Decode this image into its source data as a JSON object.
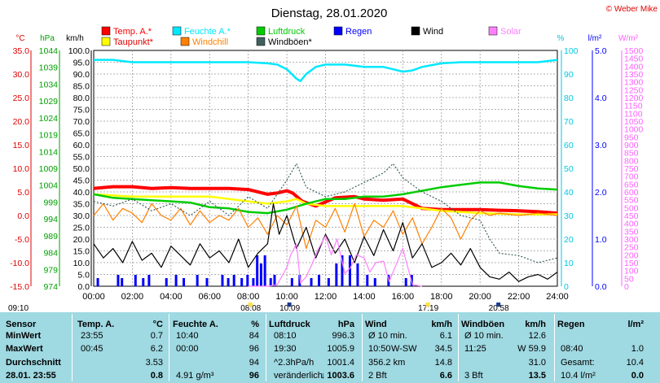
{
  "title": "Dienstag, 28.01.2020",
  "copyright": "© Weber Mike",
  "legend": [
    {
      "name": "Temp. A.*",
      "color": "#ff0000"
    },
    {
      "name": "Feuchte A.*",
      "color": "#00e8ff"
    },
    {
      "name": "Luftdruck",
      "color": "#00cc00"
    },
    {
      "name": "Regen",
      "color": "#0000ff"
    },
    {
      "name": "Wind",
      "color": "#000000"
    },
    {
      "name": "Solar",
      "color": "#ff80ff"
    },
    {
      "name": "Taupunkt*",
      "color": "#ffff00"
    },
    {
      "name": "Windchill",
      "color": "#ff8000"
    },
    {
      "name": "Windböen*",
      "color": "#406060"
    }
  ],
  "axis_units": {
    "temp": "°C",
    "hpa": "hPa",
    "kmh": "km/h",
    "pct": "%",
    "rain": "l/m²",
    "solar": "W/m²"
  },
  "chart_data": {
    "type": "line",
    "x_ticks": [
      "00:00",
      "02:00",
      "04:00",
      "06:00",
      "08:00",
      "10:00",
      "12:00",
      "14:00",
      "16:00",
      "18:00",
      "20:00",
      "22:00",
      "24:00"
    ],
    "axes": {
      "temp": {
        "ticks": [
          "35.0",
          "30.0",
          "25.0",
          "20.0",
          "15.0",
          "10.0",
          "5.0",
          "0.0",
          "-5.0",
          "-10.0",
          "-15.0"
        ],
        "range": [
          -15,
          35
        ]
      },
      "hpa": {
        "ticks": [
          "1044",
          "1039",
          "1034",
          "1029",
          "1024",
          "1019",
          "1014",
          "1009",
          "1004",
          "999",
          "994",
          "989",
          "984",
          "979",
          "974"
        ],
        "range": [
          974,
          1044
        ]
      },
      "kmh": {
        "ticks": [
          "100.0",
          "95.0",
          "90.0",
          "85.0",
          "80.0",
          "75.0",
          "70.0",
          "65.0",
          "60.0",
          "55.0",
          "50.0",
          "45.0",
          "40.0",
          "35.0",
          "30.0",
          "25.0",
          "20.0",
          "15.0",
          "10.0",
          "5.0",
          "0.0"
        ],
        "range": [
          0,
          100
        ]
      },
      "pct": {
        "ticks": [
          "100",
          "90",
          "80",
          "70",
          "60",
          "50",
          "40",
          "30",
          "20",
          "10",
          "0"
        ],
        "range": [
          0,
          100
        ]
      },
      "rain": {
        "ticks": [
          "5.0",
          "4.0",
          "3.0",
          "2.0",
          "1.0",
          "0.0"
        ],
        "range": [
          0,
          5
        ]
      },
      "solar": {
        "ticks": [
          "1500",
          "1450",
          "1400",
          "1350",
          "1300",
          "1250",
          "1200",
          "1150",
          "1100",
          "1050",
          "1000",
          "950",
          "900",
          "850",
          "800",
          "750",
          "700",
          "650",
          "600",
          "550",
          "500",
          "450",
          "400",
          "350",
          "300",
          "250",
          "200",
          "150",
          "100",
          "50",
          "0"
        ],
        "range": [
          0,
          1500
        ]
      }
    },
    "series": [
      {
        "name": "Temp. A.*",
        "color": "#ff0000",
        "axis": "kmh",
        "x": [
          0,
          1,
          2,
          3,
          4,
          5,
          6,
          7,
          8,
          9,
          9.5,
          10,
          10.3,
          10.8,
          11.5,
          12.5,
          13.5,
          14,
          15,
          16,
          16.5,
          17,
          18,
          19,
          20,
          21,
          22,
          23,
          24
        ],
        "y": [
          41.5,
          42.2,
          42.2,
          41.5,
          41.8,
          41.5,
          41.5,
          41.5,
          41,
          39,
          39.5,
          40.5,
          39.5,
          36,
          34,
          37.5,
          38,
          37,
          36.5,
          37,
          35,
          33,
          32.5,
          32.5,
          32.5,
          32.2,
          32,
          31.6,
          31
        ]
      },
      {
        "name": "Taupunkt*",
        "color": "#ffff00",
        "axis": "kmh",
        "x": [
          0,
          2,
          4,
          6,
          8,
          9,
          10,
          10.5,
          11,
          12,
          13,
          14,
          15,
          16,
          17,
          18,
          20,
          22,
          24
        ],
        "y": [
          39,
          38,
          38,
          38,
          36,
          35,
          36,
          37,
          35,
          34,
          34,
          34,
          34,
          34,
          33,
          32,
          31,
          30.5,
          30.5
        ]
      },
      {
        "name": "Feuchte A.*",
        "color": "#00e8ff",
        "axis": "pct",
        "x": [
          0,
          1,
          1.5,
          2,
          3,
          4,
          5,
          6,
          7,
          8,
          9,
          9.5,
          10,
          10.5,
          10.7,
          11,
          11.5,
          12,
          13,
          14,
          15,
          15.5,
          16,
          16.5,
          17,
          18,
          19,
          20,
          21,
          22,
          23,
          24
        ],
        "y": [
          96,
          96,
          95.5,
          95,
          95,
          95,
          95,
          95,
          95,
          95,
          94.5,
          94,
          92,
          88,
          87,
          90,
          93,
          94,
          94,
          93,
          93,
          92,
          91,
          91.5,
          93,
          94.5,
          95,
          95,
          95,
          95,
          95,
          96
        ]
      },
      {
        "name": "Luftdruck",
        "color": "#00cc00",
        "axis": "kmh",
        "x": [
          0,
          1,
          2,
          3,
          4,
          5,
          6,
          7,
          8,
          9,
          10,
          11,
          12,
          13,
          14,
          15,
          16,
          17,
          18,
          19,
          20,
          21,
          22,
          23,
          24
        ],
        "y": [
          39,
          37.5,
          37,
          36.5,
          36,
          35.5,
          33.5,
          33,
          31.5,
          31,
          32.5,
          35,
          37,
          37,
          38,
          38,
          39,
          40.5,
          42,
          43,
          44,
          44,
          42.5,
          41.5,
          41
        ]
      },
      {
        "name": "Windchill",
        "color": "#ff8000",
        "axis": "kmh",
        "x": [
          0,
          0.5,
          1,
          1.5,
          2,
          2.5,
          3,
          3.5,
          4,
          4.5,
          5,
          5.5,
          6,
          6.5,
          7,
          7.5,
          8,
          8.5,
          9,
          9.5,
          10,
          10.5,
          11,
          11.5,
          12,
          12.5,
          13,
          13.5,
          14,
          14.5,
          15,
          15.5,
          16,
          16.5,
          17,
          17.5,
          18,
          18.5,
          19,
          19.5,
          20,
          20.5,
          21,
          22,
          23,
          24
        ],
        "y": [
          30,
          35,
          28,
          33,
          31,
          27,
          35,
          30,
          28,
          33,
          26,
          32,
          27,
          30,
          28,
          33,
          25,
          29,
          22,
          30,
          26,
          34,
          16,
          28,
          25,
          33,
          23,
          35,
          21,
          28,
          25,
          32,
          22,
          29,
          18,
          25,
          33,
          29,
          20,
          28,
          32,
          30,
          31,
          30,
          31,
          30
        ]
      },
      {
        "name": "Wind",
        "color": "#000000",
        "axis": "kmh",
        "x": [
          0,
          0.5,
          1,
          1.5,
          2,
          2.5,
          3,
          3.5,
          4,
          4.5,
          5,
          5.5,
          6,
          6.5,
          7,
          7.5,
          8,
          8.5,
          9,
          9.3,
          9.6,
          10,
          10.5,
          11,
          11.5,
          12,
          12.5,
          13,
          13.5,
          14,
          14.5,
          15,
          15.5,
          16,
          16.5,
          17,
          17.5,
          18,
          18.5,
          19,
          19.5,
          20,
          20.5,
          21,
          21.5,
          22,
          22.5,
          23,
          23.5,
          24
        ],
        "y": [
          18,
          12,
          16,
          10,
          19,
          11,
          14,
          8,
          17,
          13,
          9,
          18,
          12,
          15,
          10,
          20,
          8,
          14,
          18,
          35,
          22,
          30,
          16,
          25,
          12,
          22,
          14,
          20,
          10,
          21,
          13,
          24,
          15,
          27,
          12,
          18,
          8,
          10,
          14,
          9,
          16,
          8,
          4,
          3,
          6,
          2,
          4,
          5,
          3,
          6
        ]
      },
      {
        "name": "Windböen*",
        "color": "#406060",
        "dashed": true,
        "axis": "kmh",
        "x": [
          0,
          1,
          2,
          3,
          4,
          5,
          6,
          7,
          8,
          9,
          10,
          10.5,
          11,
          12,
          13,
          14,
          15,
          15.5,
          16,
          17,
          18,
          19,
          20,
          20.5,
          21,
          22,
          23,
          24
        ],
        "y": [
          36,
          34,
          37,
          32,
          35,
          30,
          36,
          30,
          38,
          33,
          45,
          52,
          42,
          38,
          40,
          44,
          48,
          52,
          46,
          40,
          36,
          30,
          28,
          20,
          14,
          13,
          10,
          12
        ]
      },
      {
        "name": "Solar",
        "color": "#ff80ff",
        "axis": "solar",
        "x": [
          8,
          9,
          9.5,
          10,
          10.2,
          10.5,
          10.7,
          11,
          11.3,
          11.6,
          12,
          12.3,
          12.6,
          13,
          13.3,
          13.6,
          14,
          14.3,
          14.6,
          15,
          15.3,
          15.6,
          16,
          16.5,
          17
        ],
        "y": [
          0,
          0,
          10,
          120,
          200,
          270,
          20,
          60,
          140,
          230,
          320,
          200,
          300,
          80,
          120,
          200,
          180,
          90,
          150,
          160,
          30,
          120,
          240,
          10,
          0
        ]
      }
    ],
    "time_markers": [
      {
        "label": "09:10",
        "x": 0.2
      },
      {
        "label": "08:08",
        "x": 8.13
      },
      {
        "label": "10:09",
        "x": 10.15
      },
      {
        "label": "17:19",
        "x": 17.32
      },
      {
        "label": "20:58",
        "x": 20.97
      }
    ]
  },
  "stats": {
    "headers": {
      "sensor": "Sensor",
      "temp": "Temp. A.",
      "temp_unit": "°C",
      "feuchte": "Feuchte A.",
      "feuchte_unit": "%",
      "luft": "Luftdruck",
      "luft_unit": "hPa",
      "wind": "Wind",
      "wind_unit": "km/h",
      "boen": "Windböen",
      "boen_unit": "km/h",
      "regen": "Regen",
      "regen_unit": "l/m²"
    },
    "row_labels": [
      "MinWert",
      "MaxWert",
      "Durchschnitt",
      "28.01. 23:55"
    ],
    "temp": [
      [
        "23:55",
        "0.7"
      ],
      [
        "00:45",
        "6.2"
      ],
      [
        "",
        "3.53"
      ],
      [
        "",
        "0.8"
      ]
    ],
    "feuchte": [
      [
        "10:40",
        "84"
      ],
      [
        "00:00",
        "96"
      ],
      [
        "",
        "94"
      ],
      [
        "4.91 g/m³",
        "96"
      ]
    ],
    "luft": [
      [
        "08:10",
        "996.3"
      ],
      [
        "19:30",
        "1005.9"
      ],
      [
        "^2.3hPa/h",
        "1001.4"
      ],
      [
        "veränderlich",
        "↓ 1003.6"
      ]
    ],
    "wind": [
      [
        "Ø 10 min.",
        "",
        "6.1"
      ],
      [
        "10:50",
        "W-SW",
        "34.5"
      ],
      [
        "356.2 km",
        "",
        "14.8"
      ],
      [
        "2 Bft",
        "",
        "6.6"
      ]
    ],
    "boen": [
      [
        "Ø 10 min.",
        "12.6"
      ],
      [
        "11:25",
        "W 59.9"
      ],
      [
        "",
        "31.0"
      ],
      [
        "3 Bft",
        "13.5"
      ]
    ],
    "regen": [
      [
        "",
        ""
      ],
      [
        "08:40",
        "1.0"
      ],
      [
        "Gesamt:",
        "10.4"
      ],
      [
        "10.4 l/m²",
        "0.0"
      ]
    ]
  }
}
